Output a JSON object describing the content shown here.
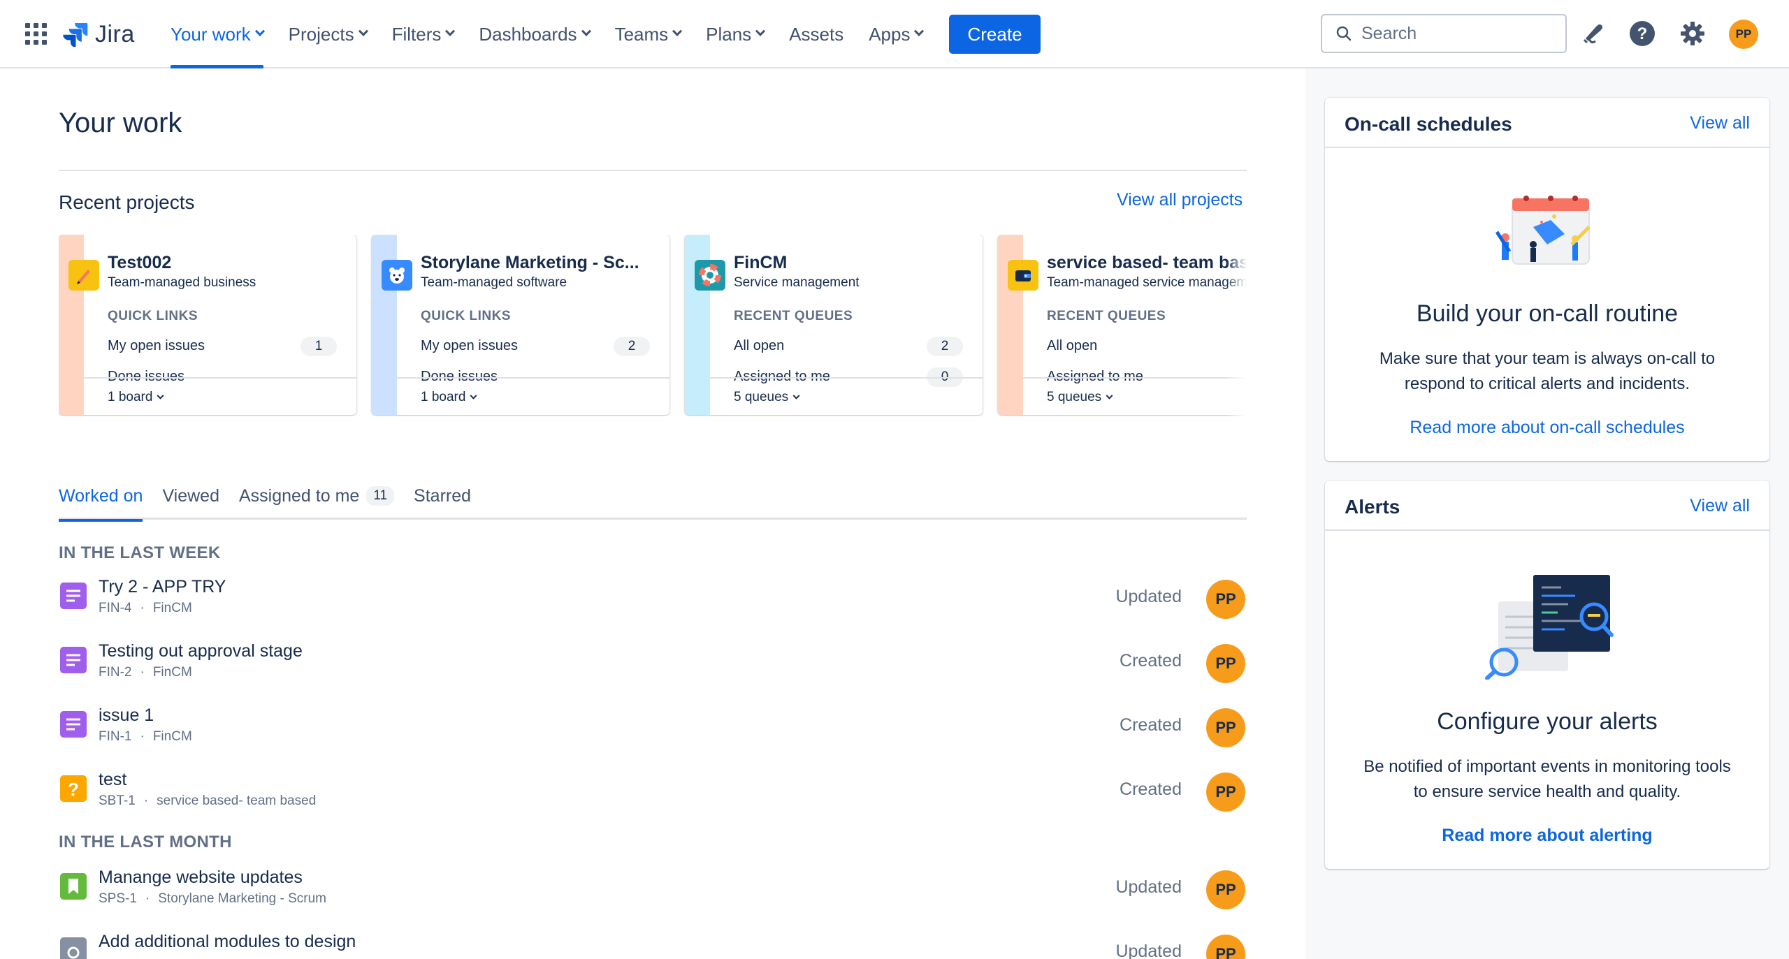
{
  "nav": {
    "logo_text": "Jira",
    "items": [
      {
        "label": "Your work",
        "dropdown": true,
        "active": true
      },
      {
        "label": "Projects",
        "dropdown": true
      },
      {
        "label": "Filters",
        "dropdown": true
      },
      {
        "label": "Dashboards",
        "dropdown": true
      },
      {
        "label": "Teams",
        "dropdown": true
      },
      {
        "label": "Plans",
        "dropdown": true
      },
      {
        "label": "Assets",
        "dropdown": false
      },
      {
        "label": "Apps",
        "dropdown": true
      }
    ],
    "create_label": "Create",
    "search_placeholder": "Search",
    "user_initials": "PP",
    "colors": {
      "accent": "#0c66e4",
      "avatar": "#f79c1a"
    }
  },
  "page": {
    "title": "Your work",
    "recent_projects_heading": "Recent projects",
    "view_all_projects": "View all projects"
  },
  "projects": [
    {
      "name": "Test002",
      "type": "Team-managed business",
      "section": "QUICK LINKS",
      "links": [
        {
          "label": "My open issues",
          "count": "1"
        },
        {
          "label": "Done issues",
          "count": ""
        }
      ],
      "footer": "1 board",
      "strip_color": "#ffd5c2",
      "icon": "pencil-icon",
      "icon_bg": "#f8c210"
    },
    {
      "name": "Storylane Marketing - Sc...",
      "type": "Team-managed software",
      "section": "QUICK LINKS",
      "links": [
        {
          "label": "My open issues",
          "count": "2"
        },
        {
          "label": "Done issues",
          "count": ""
        }
      ],
      "footer": "1 board",
      "strip_color": "#cce0ff",
      "icon": "bear-icon",
      "icon_bg": "#388bff"
    },
    {
      "name": "FinCM",
      "type": "Service management",
      "section": "RECENT QUEUES",
      "links": [
        {
          "label": "All open",
          "count": "2"
        },
        {
          "label": "Assigned to me",
          "count": "0"
        }
      ],
      "footer": "5 queues",
      "strip_color": "#c6edfb",
      "icon": "lifebuoy-icon",
      "icon_bg": "#1d9aaa"
    },
    {
      "name": "service based- team based",
      "type": "Team-managed service management",
      "section": "RECENT QUEUES",
      "links": [
        {
          "label": "All open",
          "count": ""
        },
        {
          "label": "Assigned to me",
          "count": ""
        }
      ],
      "footer": "5 queues",
      "strip_color": "#ffd5c2",
      "icon": "wallet-icon",
      "icon_bg": "#f8c210"
    }
  ],
  "tabs": [
    {
      "label": "Worked on",
      "active": true
    },
    {
      "label": "Viewed"
    },
    {
      "label": "Assigned to me",
      "badge": "11"
    },
    {
      "label": "Starred"
    }
  ],
  "groups": {
    "last_week": "IN THE LAST WEEK",
    "last_month": "IN THE LAST MONTH"
  },
  "items": [
    {
      "title": "Try 2 - APP TRY",
      "key": "FIN-4",
      "project": "FinCM",
      "action": "Updated",
      "avatar": "PP",
      "icon": "task-icon",
      "icon_color": "#9f5eec"
    },
    {
      "title": "Testing out approval stage",
      "key": "FIN-2",
      "project": "FinCM",
      "action": "Created",
      "avatar": "PP",
      "icon": "task-icon",
      "icon_color": "#9f5eec"
    },
    {
      "title": "issue 1",
      "key": "FIN-1",
      "project": "FinCM",
      "action": "Created",
      "avatar": "PP",
      "icon": "task-icon",
      "icon_color": "#9f5eec"
    },
    {
      "title": "test",
      "key": "SBT-1",
      "project": "service based- team based",
      "action": "Created",
      "avatar": "PP",
      "icon": "question-icon",
      "icon_color": "#fca700"
    },
    {
      "title": "Manange website updates",
      "key": "SPS-1",
      "project": "Storylane Marketing - Scrum",
      "action": "Updated",
      "avatar": "PP",
      "icon": "story-icon",
      "icon_color": "#63ba3c"
    },
    {
      "title": "Add additional modules to design",
      "key": "",
      "project": "",
      "action": "Updated",
      "avatar": "PP",
      "icon": "subtask-icon",
      "icon_color": "#8590a2"
    }
  ],
  "oncall": {
    "title": "On-call schedules",
    "view_all": "View all",
    "heading": "Build your on-call routine",
    "text": "Make sure that your team is always on-call to respond to critical alerts and incidents.",
    "link": "Read more about on-call schedules"
  },
  "alerts": {
    "title": "Alerts",
    "view_all": "View all",
    "heading": "Configure your alerts",
    "text": "Be notified of important events in monitoring tools to ensure service health and quality.",
    "link": "Read more about alerting"
  }
}
